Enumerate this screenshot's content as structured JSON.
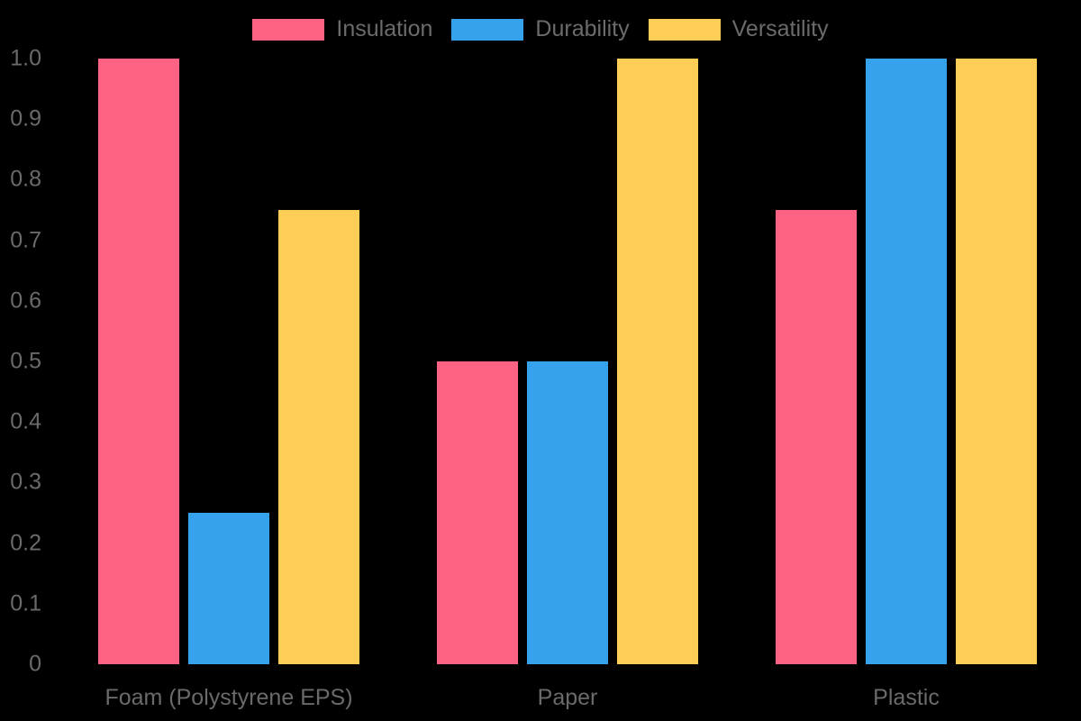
{
  "chart_data": {
    "type": "bar",
    "title": "",
    "categories": [
      "Foam (Polystyrene EPS)",
      "Paper",
      "Plastic"
    ],
    "series": [
      {
        "name": "Insulation",
        "color": "#FF6384",
        "values": [
          1.0,
          0.5,
          0.75
        ]
      },
      {
        "name": "Durability",
        "color": "#36A2EB",
        "values": [
          0.25,
          0.5,
          1.0
        ]
      },
      {
        "name": "Versatility",
        "color": "#FFCE56",
        "values": [
          0.75,
          1.0,
          1.0
        ]
      }
    ],
    "ylim": [
      0,
      1.0
    ],
    "yticks": [
      {
        "value": 0.0,
        "label": "0"
      },
      {
        "value": 0.1,
        "label": "0.1"
      },
      {
        "value": 0.2,
        "label": "0.2"
      },
      {
        "value": 0.3,
        "label": "0.3"
      },
      {
        "value": 0.4,
        "label": "0.4"
      },
      {
        "value": 0.5,
        "label": "0.5"
      },
      {
        "value": 0.6,
        "label": "0.6"
      },
      {
        "value": 0.7,
        "label": "0.7"
      },
      {
        "value": 0.8,
        "label": "0.8"
      },
      {
        "value": 0.9,
        "label": "0.9"
      },
      {
        "value": 1.0,
        "label": "1.0"
      }
    ],
    "legend_position": "top-center",
    "grid": false,
    "background_color": "#000000",
    "text_color": "#6b6b6b"
  }
}
